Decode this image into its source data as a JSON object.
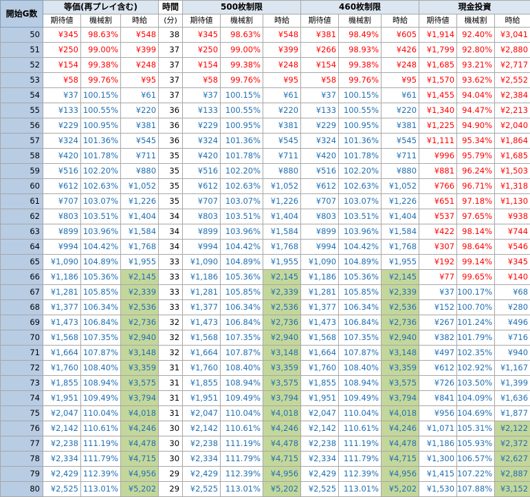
{
  "headers": {
    "start": "開始G数",
    "groups": [
      "等価(再プレイ含む)",
      "時間",
      "500枚制限",
      "460枚制限",
      "現金投資"
    ],
    "time_unit": "(分)",
    "sub": [
      "期待値",
      "機械割",
      "時給"
    ]
  },
  "colors": {
    "red": "#ff0000",
    "blue": "#1f6fb2",
    "green_fill": "#c4d79b",
    "row_header": "#b8cce4"
  },
  "rows": [
    {
      "g": "50",
      "t": "38",
      "eq": {
        "ev": "¥345",
        "rate": "98.63%",
        "hr": "¥548",
        "c": "red"
      },
      "s500": {
        "ev": "¥345",
        "rate": "98.63%",
        "hr": "¥548",
        "c": "red"
      },
      "s460": {
        "ev": "¥381",
        "rate": "98.49%",
        "hr": "¥605",
        "c": "red"
      },
      "cash": {
        "ev": "¥1,914",
        "rate": "92.40%",
        "hr": "¥3,041",
        "c": "red"
      }
    },
    {
      "g": "51",
      "t": "37",
      "eq": {
        "ev": "¥250",
        "rate": "99.00%",
        "hr": "¥399",
        "c": "red"
      },
      "s500": {
        "ev": "¥250",
        "rate": "99.00%",
        "hr": "¥399",
        "c": "red"
      },
      "s460": {
        "ev": "¥266",
        "rate": "98.93%",
        "hr": "¥426",
        "c": "red"
      },
      "cash": {
        "ev": "¥1,799",
        "rate": "92.80%",
        "hr": "¥2,880",
        "c": "red"
      }
    },
    {
      "g": "52",
      "t": "37",
      "eq": {
        "ev": "¥154",
        "rate": "99.38%",
        "hr": "¥248",
        "c": "red"
      },
      "s500": {
        "ev": "¥154",
        "rate": "99.38%",
        "hr": "¥248",
        "c": "red"
      },
      "s460": {
        "ev": "¥154",
        "rate": "99.38%",
        "hr": "¥248",
        "c": "red"
      },
      "cash": {
        "ev": "¥1,685",
        "rate": "93.21%",
        "hr": "¥2,717",
        "c": "red"
      }
    },
    {
      "g": "53",
      "t": "37",
      "eq": {
        "ev": "¥58",
        "rate": "99.76%",
        "hr": "¥95",
        "c": "red"
      },
      "s500": {
        "ev": "¥58",
        "rate": "99.76%",
        "hr": "¥95",
        "c": "red"
      },
      "s460": {
        "ev": "¥58",
        "rate": "99.76%",
        "hr": "¥95",
        "c": "red"
      },
      "cash": {
        "ev": "¥1,570",
        "rate": "93.62%",
        "hr": "¥2,552",
        "c": "red"
      }
    },
    {
      "g": "54",
      "t": "37",
      "eq": {
        "ev": "¥37",
        "rate": "100.15%",
        "hr": "¥61",
        "c": "blue"
      },
      "s500": {
        "ev": "¥37",
        "rate": "100.15%",
        "hr": "¥61",
        "c": "blue"
      },
      "s460": {
        "ev": "¥37",
        "rate": "100.15%",
        "hr": "¥61",
        "c": "blue"
      },
      "cash": {
        "ev": "¥1,455",
        "rate": "94.04%",
        "hr": "¥2,384",
        "c": "red"
      }
    },
    {
      "g": "55",
      "t": "36",
      "eq": {
        "ev": "¥133",
        "rate": "100.55%",
        "hr": "¥220",
        "c": "blue"
      },
      "s500": {
        "ev": "¥133",
        "rate": "100.55%",
        "hr": "¥220",
        "c": "blue"
      },
      "s460": {
        "ev": "¥133",
        "rate": "100.55%",
        "hr": "¥220",
        "c": "blue"
      },
      "cash": {
        "ev": "¥1,340",
        "rate": "94.47%",
        "hr": "¥2,213",
        "c": "red"
      }
    },
    {
      "g": "56",
      "t": "36",
      "eq": {
        "ev": "¥229",
        "rate": "100.95%",
        "hr": "¥381",
        "c": "blue"
      },
      "s500": {
        "ev": "¥229",
        "rate": "100.95%",
        "hr": "¥381",
        "c": "blue"
      },
      "s460": {
        "ev": "¥229",
        "rate": "100.95%",
        "hr": "¥381",
        "c": "blue"
      },
      "cash": {
        "ev": "¥1,225",
        "rate": "94.90%",
        "hr": "¥2,040",
        "c": "red"
      }
    },
    {
      "g": "57",
      "t": "36",
      "eq": {
        "ev": "¥324",
        "rate": "101.36%",
        "hr": "¥545",
        "c": "blue"
      },
      "s500": {
        "ev": "¥324",
        "rate": "101.36%",
        "hr": "¥545",
        "c": "blue"
      },
      "s460": {
        "ev": "¥324",
        "rate": "101.36%",
        "hr": "¥545",
        "c": "blue"
      },
      "cash": {
        "ev": "¥1,111",
        "rate": "95.34%",
        "hr": "¥1,864",
        "c": "red"
      }
    },
    {
      "g": "58",
      "t": "35",
      "eq": {
        "ev": "¥420",
        "rate": "101.78%",
        "hr": "¥711",
        "c": "blue"
      },
      "s500": {
        "ev": "¥420",
        "rate": "101.78%",
        "hr": "¥711",
        "c": "blue"
      },
      "s460": {
        "ev": "¥420",
        "rate": "101.78%",
        "hr": "¥711",
        "c": "blue"
      },
      "cash": {
        "ev": "¥996",
        "rate": "95.79%",
        "hr": "¥1,685",
        "c": "red"
      }
    },
    {
      "g": "59",
      "t": "35",
      "eq": {
        "ev": "¥516",
        "rate": "102.20%",
        "hr": "¥880",
        "c": "blue"
      },
      "s500": {
        "ev": "¥516",
        "rate": "102.20%",
        "hr": "¥880",
        "c": "blue"
      },
      "s460": {
        "ev": "¥516",
        "rate": "102.20%",
        "hr": "¥880",
        "c": "blue"
      },
      "cash": {
        "ev": "¥881",
        "rate": "96.24%",
        "hr": "¥1,503",
        "c": "red"
      }
    },
    {
      "g": "60",
      "t": "35",
      "eq": {
        "ev": "¥612",
        "rate": "102.63%",
        "hr": "¥1,052",
        "c": "blue"
      },
      "s500": {
        "ev": "¥612",
        "rate": "102.63%",
        "hr": "¥1,052",
        "c": "blue"
      },
      "s460": {
        "ev": "¥612",
        "rate": "102.63%",
        "hr": "¥1,052",
        "c": "blue"
      },
      "cash": {
        "ev": "¥766",
        "rate": "96.71%",
        "hr": "¥1,318",
        "c": "red"
      }
    },
    {
      "g": "61",
      "t": "35",
      "eq": {
        "ev": "¥707",
        "rate": "103.07%",
        "hr": "¥1,226",
        "c": "blue"
      },
      "s500": {
        "ev": "¥707",
        "rate": "103.07%",
        "hr": "¥1,226",
        "c": "blue"
      },
      "s460": {
        "ev": "¥707",
        "rate": "103.07%",
        "hr": "¥1,226",
        "c": "blue"
      },
      "cash": {
        "ev": "¥651",
        "rate": "97.18%",
        "hr": "¥1,130",
        "c": "red"
      }
    },
    {
      "g": "62",
      "t": "34",
      "eq": {
        "ev": "¥803",
        "rate": "103.51%",
        "hr": "¥1,404",
        "c": "blue"
      },
      "s500": {
        "ev": "¥803",
        "rate": "103.51%",
        "hr": "¥1,404",
        "c": "blue"
      },
      "s460": {
        "ev": "¥803",
        "rate": "103.51%",
        "hr": "¥1,404",
        "c": "blue"
      },
      "cash": {
        "ev": "¥537",
        "rate": "97.65%",
        "hr": "¥938",
        "c": "red"
      }
    },
    {
      "g": "63",
      "t": "34",
      "eq": {
        "ev": "¥899",
        "rate": "103.96%",
        "hr": "¥1,584",
        "c": "blue"
      },
      "s500": {
        "ev": "¥899",
        "rate": "103.96%",
        "hr": "¥1,584",
        "c": "blue"
      },
      "s460": {
        "ev": "¥899",
        "rate": "103.96%",
        "hr": "¥1,584",
        "c": "blue"
      },
      "cash": {
        "ev": "¥422",
        "rate": "98.14%",
        "hr": "¥744",
        "c": "red"
      }
    },
    {
      "g": "64",
      "t": "34",
      "eq": {
        "ev": "¥994",
        "rate": "104.42%",
        "hr": "¥1,768",
        "c": "blue"
      },
      "s500": {
        "ev": "¥994",
        "rate": "104.42%",
        "hr": "¥1,768",
        "c": "blue"
      },
      "s460": {
        "ev": "¥994",
        "rate": "104.42%",
        "hr": "¥1,768",
        "c": "blue"
      },
      "cash": {
        "ev": "¥307",
        "rate": "98.64%",
        "hr": "¥546",
        "c": "red"
      }
    },
    {
      "g": "65",
      "t": "33",
      "eq": {
        "ev": "¥1,090",
        "rate": "104.89%",
        "hr": "¥1,955",
        "c": "blue"
      },
      "s500": {
        "ev": "¥1,090",
        "rate": "104.89%",
        "hr": "¥1,955",
        "c": "blue"
      },
      "s460": {
        "ev": "¥1,090",
        "rate": "104.89%",
        "hr": "¥1,955",
        "c": "blue"
      },
      "cash": {
        "ev": "¥192",
        "rate": "99.14%",
        "hr": "¥345",
        "c": "red"
      }
    },
    {
      "g": "66",
      "t": "33",
      "eq": {
        "ev": "¥1,186",
        "rate": "105.36%",
        "hr": "¥2,145",
        "c": "blue",
        "g": 1
      },
      "s500": {
        "ev": "¥1,186",
        "rate": "105.36%",
        "hr": "¥2,145",
        "c": "blue",
        "g": 1
      },
      "s460": {
        "ev": "¥1,186",
        "rate": "105.36%",
        "hr": "¥2,145",
        "c": "blue",
        "g": 1
      },
      "cash": {
        "ev": "¥77",
        "rate": "99.65%",
        "hr": "¥140",
        "c": "red"
      }
    },
    {
      "g": "67",
      "t": "33",
      "eq": {
        "ev": "¥1,281",
        "rate": "105.85%",
        "hr": "¥2,339",
        "c": "blue",
        "g": 1
      },
      "s500": {
        "ev": "¥1,281",
        "rate": "105.85%",
        "hr": "¥2,339",
        "c": "blue",
        "g": 1
      },
      "s460": {
        "ev": "¥1,281",
        "rate": "105.85%",
        "hr": "¥2,339",
        "c": "blue",
        "g": 1
      },
      "cash": {
        "ev": "¥37",
        "rate": "100.17%",
        "hr": "¥68",
        "c": "blue"
      }
    },
    {
      "g": "68",
      "t": "33",
      "eq": {
        "ev": "¥1,377",
        "rate": "106.34%",
        "hr": "¥2,536",
        "c": "blue",
        "g": 1
      },
      "s500": {
        "ev": "¥1,377",
        "rate": "106.34%",
        "hr": "¥2,536",
        "c": "blue",
        "g": 1
      },
      "s460": {
        "ev": "¥1,377",
        "rate": "106.34%",
        "hr": "¥2,536",
        "c": "blue",
        "g": 1
      },
      "cash": {
        "ev": "¥152",
        "rate": "100.70%",
        "hr": "¥280",
        "c": "blue"
      }
    },
    {
      "g": "69",
      "t": "32",
      "eq": {
        "ev": "¥1,473",
        "rate": "106.84%",
        "hr": "¥2,736",
        "c": "blue",
        "g": 1
      },
      "s500": {
        "ev": "¥1,473",
        "rate": "106.84%",
        "hr": "¥2,736",
        "c": "blue",
        "g": 1
      },
      "s460": {
        "ev": "¥1,473",
        "rate": "106.84%",
        "hr": "¥2,736",
        "c": "blue",
        "g": 1
      },
      "cash": {
        "ev": "¥267",
        "rate": "101.24%",
        "hr": "¥496",
        "c": "blue"
      }
    },
    {
      "g": "70",
      "t": "32",
      "eq": {
        "ev": "¥1,568",
        "rate": "107.35%",
        "hr": "¥2,940",
        "c": "blue",
        "g": 1
      },
      "s500": {
        "ev": "¥1,568",
        "rate": "107.35%",
        "hr": "¥2,940",
        "c": "blue",
        "g": 1
      },
      "s460": {
        "ev": "¥1,568",
        "rate": "107.35%",
        "hr": "¥2,940",
        "c": "blue",
        "g": 1
      },
      "cash": {
        "ev": "¥382",
        "rate": "101.79%",
        "hr": "¥716",
        "c": "blue"
      }
    },
    {
      "g": "71",
      "t": "32",
      "eq": {
        "ev": "¥1,664",
        "rate": "107.87%",
        "hr": "¥3,148",
        "c": "blue",
        "g": 1
      },
      "s500": {
        "ev": "¥1,664",
        "rate": "107.87%",
        "hr": "¥3,148",
        "c": "blue",
        "g": 1
      },
      "s460": {
        "ev": "¥1,664",
        "rate": "107.87%",
        "hr": "¥3,148",
        "c": "blue",
        "g": 1
      },
      "cash": {
        "ev": "¥497",
        "rate": "102.35%",
        "hr": "¥940",
        "c": "blue"
      }
    },
    {
      "g": "72",
      "t": "31",
      "eq": {
        "ev": "¥1,760",
        "rate": "108.40%",
        "hr": "¥3,359",
        "c": "blue",
        "g": 1
      },
      "s500": {
        "ev": "¥1,760",
        "rate": "108.40%",
        "hr": "¥3,359",
        "c": "blue",
        "g": 1
      },
      "s460": {
        "ev": "¥1,760",
        "rate": "108.40%",
        "hr": "¥3,359",
        "c": "blue",
        "g": 1
      },
      "cash": {
        "ev": "¥612",
        "rate": "102.92%",
        "hr": "¥1,167",
        "c": "blue"
      }
    },
    {
      "g": "73",
      "t": "31",
      "eq": {
        "ev": "¥1,855",
        "rate": "108.94%",
        "hr": "¥3,575",
        "c": "blue",
        "g": 1
      },
      "s500": {
        "ev": "¥1,855",
        "rate": "108.94%",
        "hr": "¥3,575",
        "c": "blue",
        "g": 1
      },
      "s460": {
        "ev": "¥1,855",
        "rate": "108.94%",
        "hr": "¥3,575",
        "c": "blue",
        "g": 1
      },
      "cash": {
        "ev": "¥726",
        "rate": "103.50%",
        "hr": "¥1,399",
        "c": "blue"
      }
    },
    {
      "g": "74",
      "t": "31",
      "eq": {
        "ev": "¥1,951",
        "rate": "109.49%",
        "hr": "¥3,794",
        "c": "blue",
        "g": 1
      },
      "s500": {
        "ev": "¥1,951",
        "rate": "109.49%",
        "hr": "¥3,794",
        "c": "blue",
        "g": 1
      },
      "s460": {
        "ev": "¥1,951",
        "rate": "109.49%",
        "hr": "¥3,794",
        "c": "blue",
        "g": 1
      },
      "cash": {
        "ev": "¥841",
        "rate": "104.09%",
        "hr": "¥1,636",
        "c": "blue"
      }
    },
    {
      "g": "75",
      "t": "31",
      "eq": {
        "ev": "¥2,047",
        "rate": "110.04%",
        "hr": "¥4,018",
        "c": "blue",
        "g": 1
      },
      "s500": {
        "ev": "¥2,047",
        "rate": "110.04%",
        "hr": "¥4,018",
        "c": "blue",
        "g": 1
      },
      "s460": {
        "ev": "¥2,047",
        "rate": "110.04%",
        "hr": "¥4,018",
        "c": "blue",
        "g": 1
      },
      "cash": {
        "ev": "¥956",
        "rate": "104.69%",
        "hr": "¥1,877",
        "c": "blue"
      }
    },
    {
      "g": "76",
      "t": "30",
      "eq": {
        "ev": "¥2,142",
        "rate": "110.61%",
        "hr": "¥4,246",
        "c": "blue",
        "g": 1
      },
      "s500": {
        "ev": "¥2,142",
        "rate": "110.61%",
        "hr": "¥4,246",
        "c": "blue",
        "g": 1
      },
      "s460": {
        "ev": "¥2,142",
        "rate": "110.61%",
        "hr": "¥4,246",
        "c": "blue",
        "g": 1
      },
      "cash": {
        "ev": "¥1,071",
        "rate": "105.31%",
        "hr": "¥2,122",
        "c": "blue",
        "g": 1
      }
    },
    {
      "g": "77",
      "t": "30",
      "eq": {
        "ev": "¥2,238",
        "rate": "111.19%",
        "hr": "¥4,478",
        "c": "blue",
        "g": 1
      },
      "s500": {
        "ev": "¥2,238",
        "rate": "111.19%",
        "hr": "¥4,478",
        "c": "blue",
        "g": 1
      },
      "s460": {
        "ev": "¥2,238",
        "rate": "111.19%",
        "hr": "¥4,478",
        "c": "blue",
        "g": 1
      },
      "cash": {
        "ev": "¥1,186",
        "rate": "105.93%",
        "hr": "¥2,372",
        "c": "blue",
        "g": 1
      }
    },
    {
      "g": "78",
      "t": "30",
      "eq": {
        "ev": "¥2,334",
        "rate": "111.79%",
        "hr": "¥4,715",
        "c": "blue",
        "g": 1
      },
      "s500": {
        "ev": "¥2,334",
        "rate": "111.79%",
        "hr": "¥4,715",
        "c": "blue",
        "g": 1
      },
      "s460": {
        "ev": "¥2,334",
        "rate": "111.79%",
        "hr": "¥4,715",
        "c": "blue",
        "g": 1
      },
      "cash": {
        "ev": "¥1,300",
        "rate": "106.57%",
        "hr": "¥2,627",
        "c": "blue",
        "g": 1
      }
    },
    {
      "g": "79",
      "t": "29",
      "eq": {
        "ev": "¥2,429",
        "rate": "112.39%",
        "hr": "¥4,956",
        "c": "blue",
        "g": 1
      },
      "s500": {
        "ev": "¥2,429",
        "rate": "112.39%",
        "hr": "¥4,956",
        "c": "blue",
        "g": 1
      },
      "s460": {
        "ev": "¥2,429",
        "rate": "112.39%",
        "hr": "¥4,956",
        "c": "blue",
        "g": 1
      },
      "cash": {
        "ev": "¥1,415",
        "rate": "107.22%",
        "hr": "¥2,887",
        "c": "blue",
        "g": 1
      }
    },
    {
      "g": "80",
      "t": "29",
      "eq": {
        "ev": "¥2,525",
        "rate": "113.01%",
        "hr": "¥5,202",
        "c": "blue",
        "g": 1
      },
      "s500": {
        "ev": "¥2,525",
        "rate": "113.01%",
        "hr": "¥5,202",
        "c": "blue",
        "g": 1
      },
      "s460": {
        "ev": "¥2,525",
        "rate": "113.01%",
        "hr": "¥5,202",
        "c": "blue",
        "g": 1
      },
      "cash": {
        "ev": "¥1,530",
        "rate": "107.88%",
        "hr": "¥3,152",
        "c": "blue",
        "g": 1
      }
    }
  ]
}
